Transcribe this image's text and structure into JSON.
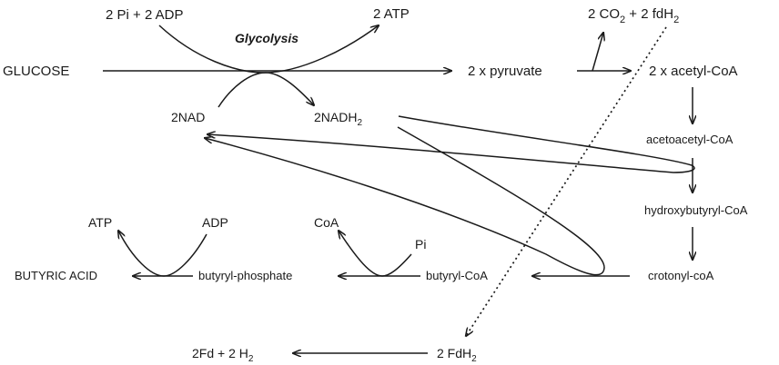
{
  "labels": {
    "pi_adp_top": "2 Pi + 2 ADP",
    "atp_top": "2 ATP",
    "glycolysis": "Glycolysis",
    "glucose": "GLUCOSE",
    "pyruvate": "2 x pyruvate",
    "co2_a": "2 CO",
    "co2_sub": "2",
    "co2_b": " + 2 fdH",
    "fdh_top_sub": "2",
    "acetyl_coa": "2 x acetyl-CoA",
    "nad": "2NAD",
    "nadh_main": "2NADH",
    "nadh_sub": "2",
    "acetoacetyl_coa": "acetoacetyl-CoA",
    "hydroxybutyryl_coa": "hydroxybutyryl-CoA",
    "crotonyl_coa": "crotonyl-coA",
    "atp_left": "ATP",
    "adp_left": "ADP",
    "coa_mid": "CoA",
    "pi_mid": "Pi",
    "butyric_acid": "BUTYRIC ACID",
    "butyryl_phosphate": "butyryl-phosphate",
    "butyryl_coa": "butyryl-CoA",
    "fd_h2_a": "2Fd + 2 H",
    "fd_h2_sub": "2",
    "fdh2_bottom_main": "2 FdH",
    "fdh2_bottom_sub": "2"
  }
}
